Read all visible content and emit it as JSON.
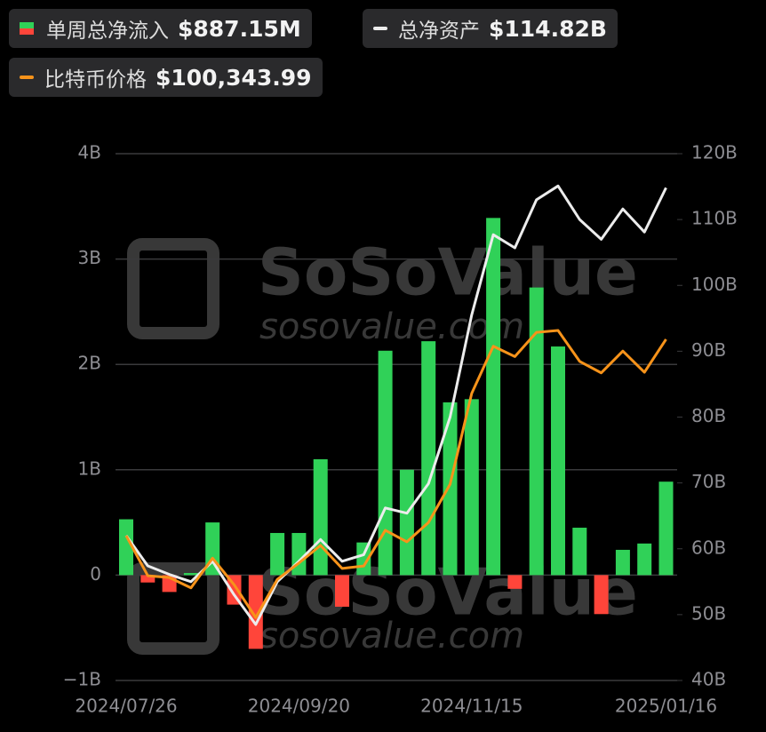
{
  "chart_data": {
    "type": "bar-line",
    "categories": [
      "2024/07/26",
      null,
      null,
      null,
      null,
      null,
      null,
      null,
      "2024/09/20",
      null,
      null,
      null,
      null,
      null,
      null,
      null,
      "2024/11/15",
      null,
      null,
      null,
      null,
      null,
      null,
      null,
      null,
      "2025/01/16"
    ],
    "series": [
      {
        "name": "单周总净流入",
        "value_label": "$887.15M",
        "type": "bar",
        "color": "#30d158",
        "negative_color": "#ff453a",
        "values": [
          0.53,
          -0.07,
          -0.16,
          0.02,
          0.5,
          -0.28,
          -0.7,
          0.4,
          0.4,
          1.1,
          -0.3,
          0.31,
          2.13,
          1.0,
          2.22,
          1.64,
          1.67,
          3.39,
          -0.13,
          2.73,
          2.17,
          0.45,
          -0.37,
          0.24,
          0.3,
          0.887
        ]
      },
      {
        "name": "总净资产",
        "value_label": "$114.82B",
        "type": "line",
        "axis": "y2",
        "color": "#ececec",
        "values": [
          62.0,
          57.4,
          56.1,
          55.0,
          58.1,
          53.0,
          48.5,
          55.0,
          58.1,
          61.4,
          58.1,
          59.1,
          66.2,
          65.4,
          69.9,
          80.0,
          95.5,
          107.7,
          105.7,
          113.0,
          115.1,
          110.0,
          107.0,
          111.6,
          108.1,
          114.82
        ]
      },
      {
        "name": "比特币价格",
        "value_label": "$100,343.99",
        "type": "line",
        "axis": "y3",
        "color": "#f7931a",
        "values": [
          67900,
          61300,
          61000,
          59300,
          64200,
          59800,
          54400,
          60700,
          63400,
          66300,
          62500,
          62900,
          68800,
          66900,
          70100,
          76400,
          91400,
          99200,
          97500,
          101500,
          101800,
          96700,
          94800,
          98400,
          94900,
          100343.99
        ]
      }
    ],
    "ylim": [
      -1,
      4
    ],
    "yticks": [
      {
        "value": -1,
        "label": "−1B"
      },
      0,
      {
        "value": 1,
        "label": "1B"
      },
      {
        "value": 2,
        "label": "2B"
      },
      {
        "value": 3,
        "label": "3B"
      },
      {
        "value": 4,
        "label": "4B"
      }
    ],
    "y2lim": [
      40,
      120
    ],
    "y2ticks": [
      {
        "value": 40,
        "label": "40B"
      },
      {
        "value": 50,
        "label": "50B"
      },
      {
        "value": 60,
        "label": "60B"
      },
      {
        "value": 70,
        "label": "70B"
      },
      {
        "value": 80,
        "label": "80B"
      },
      {
        "value": 90,
        "label": "90B"
      },
      {
        "value": 100,
        "label": "100B"
      },
      {
        "value": 110,
        "label": "110B"
      },
      {
        "value": 120,
        "label": "120B"
      }
    ],
    "y3lim": [
      44000,
      131000
    ],
    "grid": true,
    "watermark": [
      "SoSoValue",
      "sosovalue.com"
    ]
  }
}
